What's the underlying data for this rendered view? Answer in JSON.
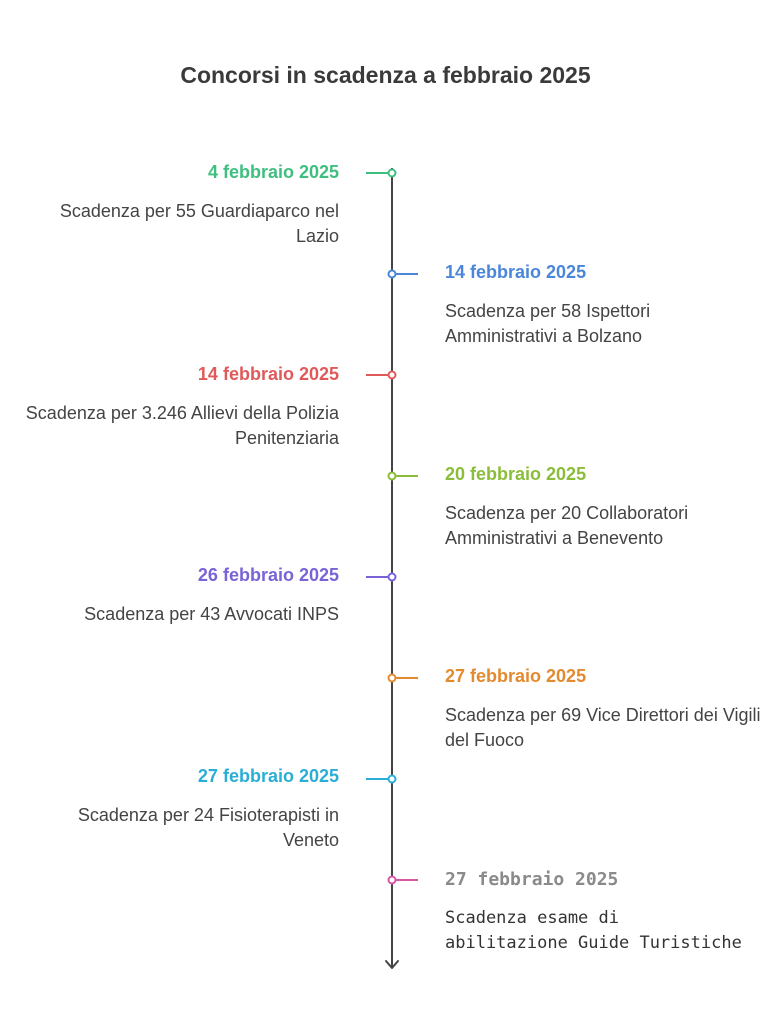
{
  "title": "Concorsi in scadenza a febbraio 2025",
  "events": [
    {
      "date": "4 febbraio 2025",
      "desc": "Scadenza per 55 Guardiaparco nel Lazio",
      "side": "left",
      "color": "#3fbf7f"
    },
    {
      "date": "14 febbraio 2025",
      "desc": "Scadenza per 58 Ispettori Amministrativi a Bolzano",
      "side": "right",
      "color": "#4a86d9"
    },
    {
      "date": "14 febbraio 2025",
      "desc": "Scadenza per 3.246 Allievi della Polizia Penitenziaria",
      "side": "left",
      "color": "#e05a5a"
    },
    {
      "date": "20 febbraio 2025",
      "desc": "Scadenza per 20 Collaboratori Amministrativi a Benevento",
      "side": "right",
      "color": "#8bbd3a"
    },
    {
      "date": "26 febbraio 2025",
      "desc": "Scadenza per 43 Avvocati INPS",
      "side": "left",
      "color": "#7a63d6"
    },
    {
      "date": "27 febbraio 2025",
      "desc": "Scadenza per 69 Vice Direttori dei Vigili del Fuoco",
      "side": "right",
      "color": "#e38a2e"
    },
    {
      "date": "27 febbraio 2025",
      "desc": "Scadenza per 24 Fisioterapisti in Veneto",
      "side": "left",
      "color": "#2aaed6"
    },
    {
      "date": "27 febbraio 2025",
      "desc": "Scadenza esame di abilitazione Guide Turistiche",
      "side": "right",
      "color": "#d656a8",
      "text_color": "#8a8a8a"
    }
  ]
}
